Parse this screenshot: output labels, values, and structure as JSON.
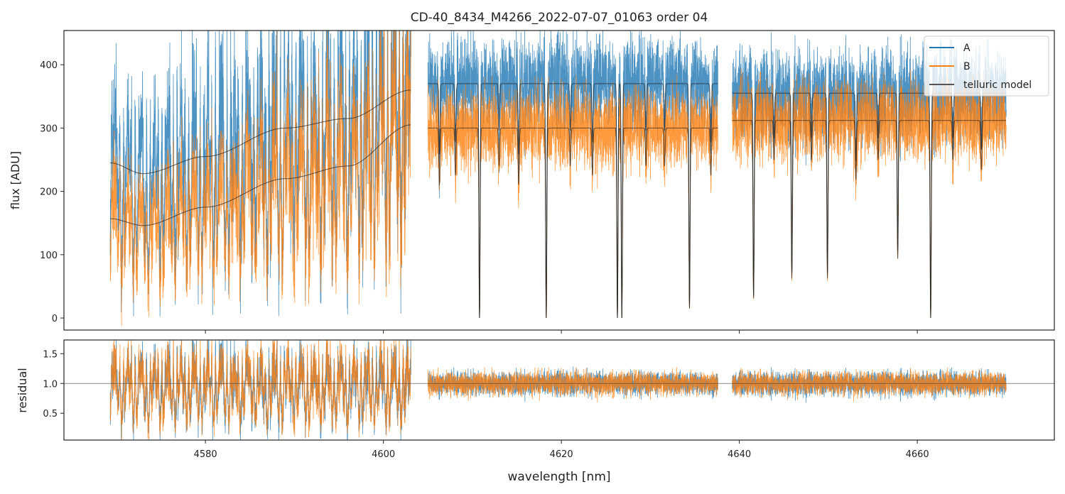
{
  "chart_data": {
    "type": "line",
    "title": "CD-40_8434_M4266_2022-07-07_01063  order 04",
    "xlabel": "wavelength [nm]",
    "panels": [
      {
        "name": "flux",
        "ylabel": "flux [ADU]",
        "ylim": [
          -19,
          454
        ],
        "yticks": [
          0,
          100,
          200,
          300,
          400
        ]
      },
      {
        "name": "residual",
        "ylabel": "residual",
        "ylim": [
          0.05,
          1.73
        ],
        "yticks": [
          0.5,
          1.0,
          1.5
        ],
        "hline": 1.0
      }
    ],
    "xlim": [
      4564.1,
      4675.4
    ],
    "xticks": [
      4580,
      4600,
      4620,
      4640,
      4660
    ],
    "xtick_labels": [
      "4580",
      "4600",
      "4620",
      "4640",
      "4660"
    ],
    "segments": [
      [
        4569.3,
        4603.1
      ],
      [
        4605.0,
        4637.6
      ],
      [
        4639.2,
        4670.0
      ]
    ],
    "legend": {
      "placement": "top-right",
      "entries": [
        "A",
        "B",
        "telluric model"
      ]
    },
    "series": [
      {
        "name": "A",
        "color": "#1f77b4"
      },
      {
        "name": "B",
        "color": "#ff7f0e"
      },
      {
        "name": "telluric model",
        "color": "#333333"
      }
    ],
    "telluric_continuum": {
      "A": {
        "seg1": [
          [
            4569.3,
            245
          ],
          [
            4573,
            228
          ],
          [
            4580,
            255
          ],
          [
            4589,
            300
          ],
          [
            4596,
            315
          ],
          [
            4603.1,
            360
          ]
        ],
        "seg2": 370,
        "seg3": 355
      },
      "B": {
        "seg1": [
          [
            4569.3,
            157
          ],
          [
            4573,
            146
          ],
          [
            4580,
            175
          ],
          [
            4589,
            220
          ],
          [
            4596,
            240
          ],
          [
            4603.1,
            305
          ]
        ],
        "seg2": 300,
        "seg3": 312
      }
    },
    "telluric_lines_nm": [
      4606.3,
      4608.1,
      4610.8,
      4613.0,
      4615.2,
      4618.3,
      4621.0,
      4623.5,
      4626.3,
      4626.8,
      4629.5,
      4631.6,
      4634.4,
      4636.8,
      4641.6,
      4643.9,
      4645.9,
      4648.1,
      4649.9,
      4653.1,
      4655.6,
      4657.8,
      4661.5,
      4664.0,
      4667.2
    ],
    "telluric_line_depths": [
      0.3,
      0.25,
      1.0,
      0.2,
      0.3,
      1.0,
      0.2,
      0.25,
      1.0,
      1.0,
      0.2,
      0.2,
      0.95,
      0.25,
      0.9,
      0.2,
      0.8,
      0.2,
      0.8,
      0.3,
      0.2,
      0.7,
      1.0,
      0.2,
      0.25
    ]
  }
}
